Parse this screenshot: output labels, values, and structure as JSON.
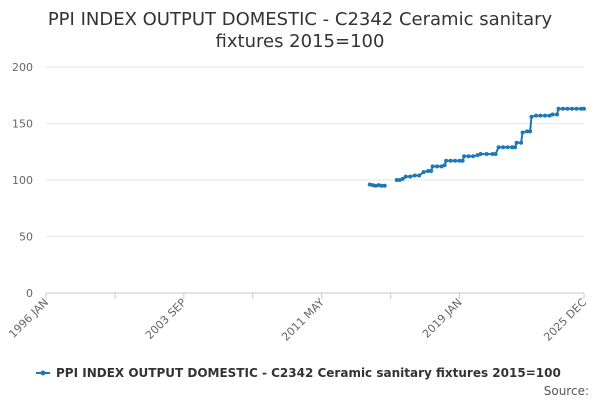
{
  "chart_data": {
    "type": "line",
    "title_lines": [
      "PPI INDEX OUTPUT DOMESTIC - C2342 Ceramic sanitary",
      "fixtures 2015=100"
    ],
    "xlabel": "",
    "ylabel": "",
    "x_tick_labels": [
      "1996 JAN",
      "2003 SEP",
      "2011 MAY",
      "2019 JAN",
      "2025 DEC"
    ],
    "y_ticks": [
      0,
      50,
      100,
      150,
      200
    ],
    "ylim": [
      0,
      200
    ],
    "xlim": [
      "1996 JAN",
      "2025 DEC"
    ],
    "grid": "horizontal",
    "legend_position": "bottom",
    "series": [
      {
        "name": "PPI INDEX OUTPUT DOMESTIC - C2342 Ceramic sanitary fixtures 2015=100",
        "color": "#1f77b4",
        "segments": [
          [
            [
              "2014 JAN",
              96
            ],
            [
              "2014 MAR",
              95.5
            ],
            [
              "2014 MAY",
              95
            ],
            [
              "2014 JUL",
              95.5
            ],
            [
              "2014 SEP",
              95
            ],
            [
              "2014 NOV",
              95
            ]
          ],
          [
            [
              "2015 JUL",
              100
            ],
            [
              "2015 SEP",
              100
            ],
            [
              "2015 NOV",
              101
            ],
            [
              "2016 JAN",
              103
            ],
            [
              "2016 APR",
              103
            ],
            [
              "2016 JUL",
              104
            ],
            [
              "2016 OCT",
              104
            ],
            [
              "2017 JAN",
              107
            ],
            [
              "2017 APR",
              108
            ],
            [
              "2017 JUN",
              108
            ],
            [
              "2017 JUL",
              112
            ],
            [
              "2017 OCT",
              112
            ],
            [
              "2018 JAN",
              112
            ],
            [
              "2018 MAR",
              113
            ],
            [
              "2018 APR",
              117
            ],
            [
              "2018 JUL",
              117
            ],
            [
              "2018 OCT",
              117
            ],
            [
              "2019 JAN",
              117
            ],
            [
              "2019 MAR",
              117
            ],
            [
              "2019 APR",
              121
            ],
            [
              "2019 JUL",
              121
            ],
            [
              "2019 OCT",
              121
            ],
            [
              "2020 JAN",
              122
            ],
            [
              "2020 MAR",
              123
            ],
            [
              "2020 JUL",
              123
            ],
            [
              "2020 NOV",
              123
            ],
            [
              "2021 JAN",
              123
            ],
            [
              "2021 MAR",
              129
            ],
            [
              "2021 JUN",
              129
            ],
            [
              "2021 SEP",
              129
            ],
            [
              "2021 DEC",
              129
            ],
            [
              "2022 FEB",
              129
            ],
            [
              "2022 MAR",
              133
            ],
            [
              "2022 JUN",
              133
            ],
            [
              "2022 JUL",
              142
            ],
            [
              "2022 OCT",
              143
            ],
            [
              "2022 DEC",
              143
            ],
            [
              "2023 JAN",
              156
            ],
            [
              "2023 APR",
              157
            ],
            [
              "2023 JUL",
              157
            ],
            [
              "2023 OCT",
              157
            ],
            [
              "2024 JAN",
              157
            ],
            [
              "2024 MAR",
              158
            ],
            [
              "2024 JUN",
              158
            ],
            [
              "2024 JUL",
              163
            ],
            [
              "2024 OCT",
              163
            ],
            [
              "2025 JAN",
              163
            ],
            [
              "2025 APR",
              163
            ],
            [
              "2025 JUL",
              163
            ],
            [
              "2025 OCT",
              163
            ],
            [
              "2025 DEC",
              163
            ]
          ]
        ]
      }
    ]
  },
  "source_label": "Source:"
}
